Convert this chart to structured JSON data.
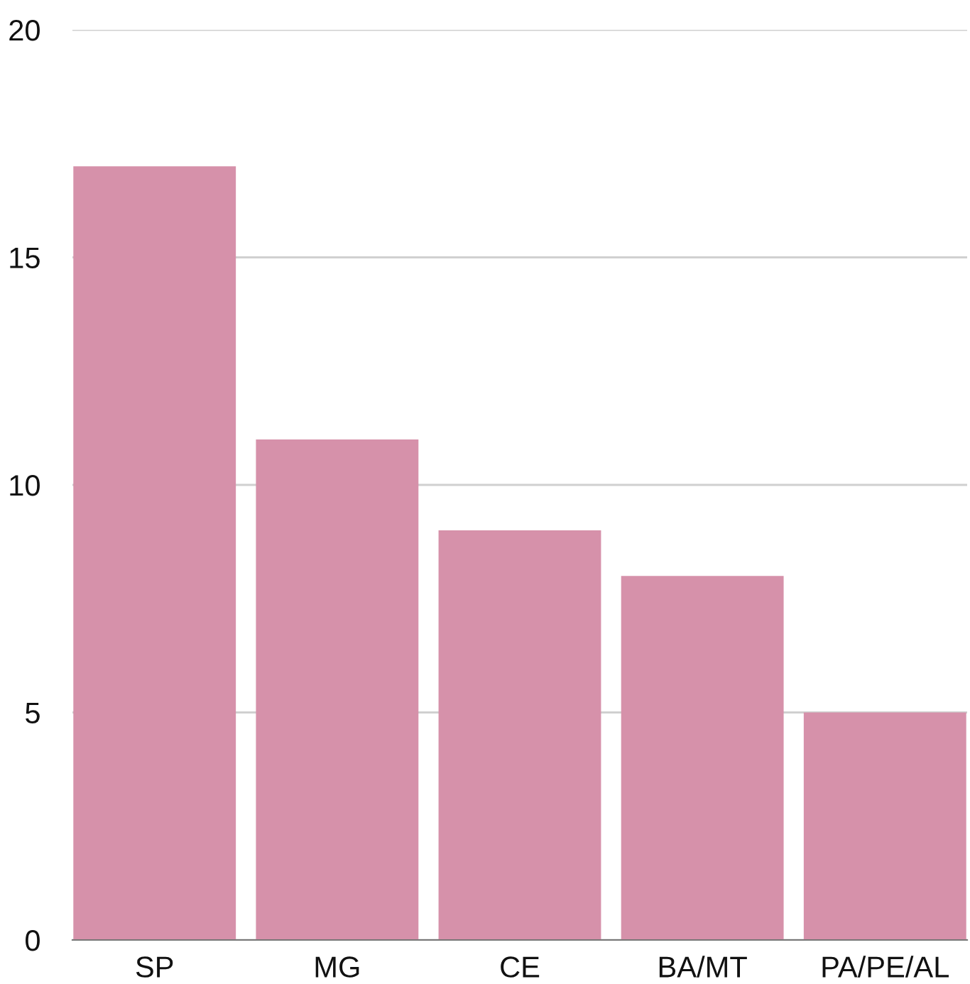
{
  "chart_data": {
    "type": "bar",
    "categories": [
      "SP",
      "MG",
      "CE",
      "BA/MT",
      "PA/PE/AL"
    ],
    "values": [
      17,
      11,
      9,
      8,
      5
    ],
    "color": "#d691aa",
    "ylim": [
      0,
      20
    ],
    "yticks": [
      0,
      5,
      10,
      15,
      20
    ],
    "grid": "y",
    "legend": false
  }
}
